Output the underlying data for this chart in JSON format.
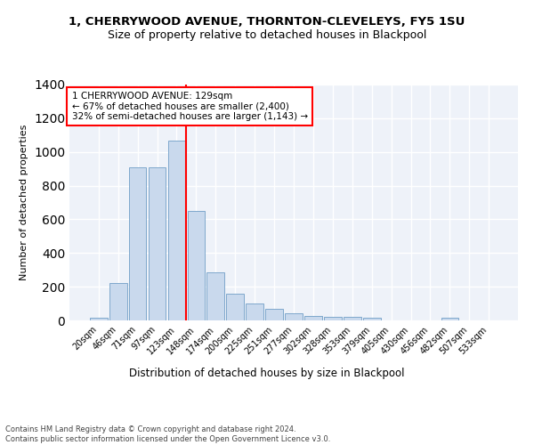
{
  "title1": "1, CHERRYWOOD AVENUE, THORNTON-CLEVELEYS, FY5 1SU",
  "title2": "Size of property relative to detached houses in Blackpool",
  "xlabel": "Distribution of detached houses by size in Blackpool",
  "ylabel": "Number of detached properties",
  "categories": [
    "20sqm",
    "46sqm",
    "71sqm",
    "97sqm",
    "123sqm",
    "148sqm",
    "174sqm",
    "200sqm",
    "225sqm",
    "251sqm",
    "277sqm",
    "302sqm",
    "328sqm",
    "353sqm",
    "379sqm",
    "405sqm",
    "430sqm",
    "456sqm",
    "482sqm",
    "507sqm",
    "533sqm"
  ],
  "values": [
    18,
    222,
    908,
    908,
    1068,
    648,
    283,
    160,
    103,
    70,
    40,
    25,
    20,
    20,
    15,
    0,
    0,
    0,
    15,
    0,
    0
  ],
  "bar_color": "#c9d9ed",
  "bar_edge_color": "#7fa8cc",
  "vline_color": "red",
  "annotation_text": "1 CHERRYWOOD AVENUE: 129sqm\n← 67% of detached houses are smaller (2,400)\n32% of semi-detached houses are larger (1,143) →",
  "annotation_box_color": "white",
  "annotation_box_edge": "red",
  "footer_text": "Contains HM Land Registry data © Crown copyright and database right 2024.\nContains public sector information licensed under the Open Government Licence v3.0.",
  "ylim": [
    0,
    1400
  ],
  "background_color": "#eef2f9"
}
